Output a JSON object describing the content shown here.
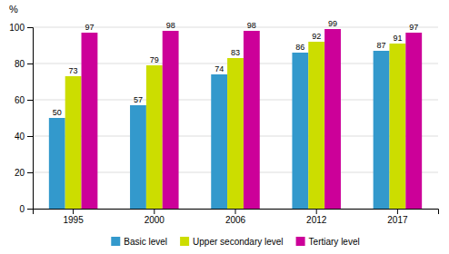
{
  "chart_data": {
    "type": "bar",
    "ylabel": "%",
    "categories": [
      "1995",
      "2000",
      "2006",
      "2012",
      "2017"
    ],
    "series": [
      {
        "name": "Basic level",
        "color": "#3399CC",
        "values": [
          50,
          57,
          74,
          86,
          87
        ]
      },
      {
        "name": "Upper secondary level",
        "color": "#CCDD00",
        "values": [
          73,
          79,
          83,
          92,
          91
        ]
      },
      {
        "name": "Tertiary level",
        "color": "#CC0099",
        "values": [
          97,
          98,
          98,
          99,
          97
        ]
      }
    ],
    "ylim": [
      0,
      100
    ],
    "yticks": [
      0,
      20,
      40,
      60,
      80,
      100
    ],
    "grid": true,
    "legend": "bottom",
    "data_labels": true
  }
}
